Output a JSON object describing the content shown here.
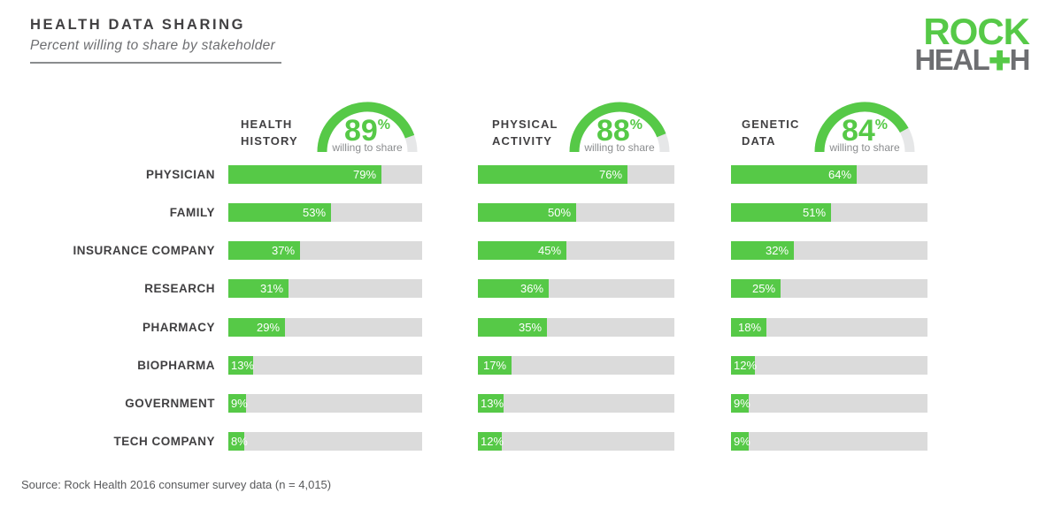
{
  "header": {
    "title": "HEALTH DATA SHARING",
    "subtitle": "Percent willing to share by stakeholder"
  },
  "logo": {
    "line1": "ROCK",
    "line2_part1": "HEAL",
    "line2_plus": "✚",
    "line2_part2": "H"
  },
  "source": "Source: Rock Health 2016 consumer survey data (n = 4,015)",
  "colors": {
    "green": "#56c947",
    "track_gray": "#dbdbdb",
    "arc_gray": "#e6e7e8",
    "text_dark": "#414042",
    "text_gray": "#6d6e71"
  },
  "chart_data": {
    "type": "bar",
    "title": "HEALTH DATA SHARING",
    "subtitle": "Percent willing to share by stakeholder",
    "xlim": [
      0,
      100
    ],
    "value_suffix": "%",
    "gauge_caption": "willing to share",
    "categories": [
      "PHYSICIAN",
      "FAMILY",
      "INSURANCE COMPANY",
      "RESEARCH",
      "PHARMACY",
      "BIOPHARMA",
      "GOVERNMENT",
      "TECH COMPANY"
    ],
    "series": [
      {
        "name": "HEALTH HISTORY",
        "label_lines": [
          "HEALTH",
          "HISTORY"
        ],
        "gauge_value": 89,
        "values": [
          79,
          53,
          37,
          31,
          29,
          13,
          9,
          8
        ]
      },
      {
        "name": "PHYSICAL ACTIVITY",
        "label_lines": [
          "PHYSICAL",
          "ACTIVITY"
        ],
        "gauge_value": 88,
        "values": [
          76,
          50,
          45,
          36,
          35,
          17,
          13,
          12
        ]
      },
      {
        "name": "GENETIC DATA",
        "label_lines": [
          "GENETIC",
          "DATA"
        ],
        "gauge_value": 84,
        "values": [
          64,
          51,
          32,
          25,
          18,
          12,
          9,
          9
        ]
      }
    ]
  }
}
